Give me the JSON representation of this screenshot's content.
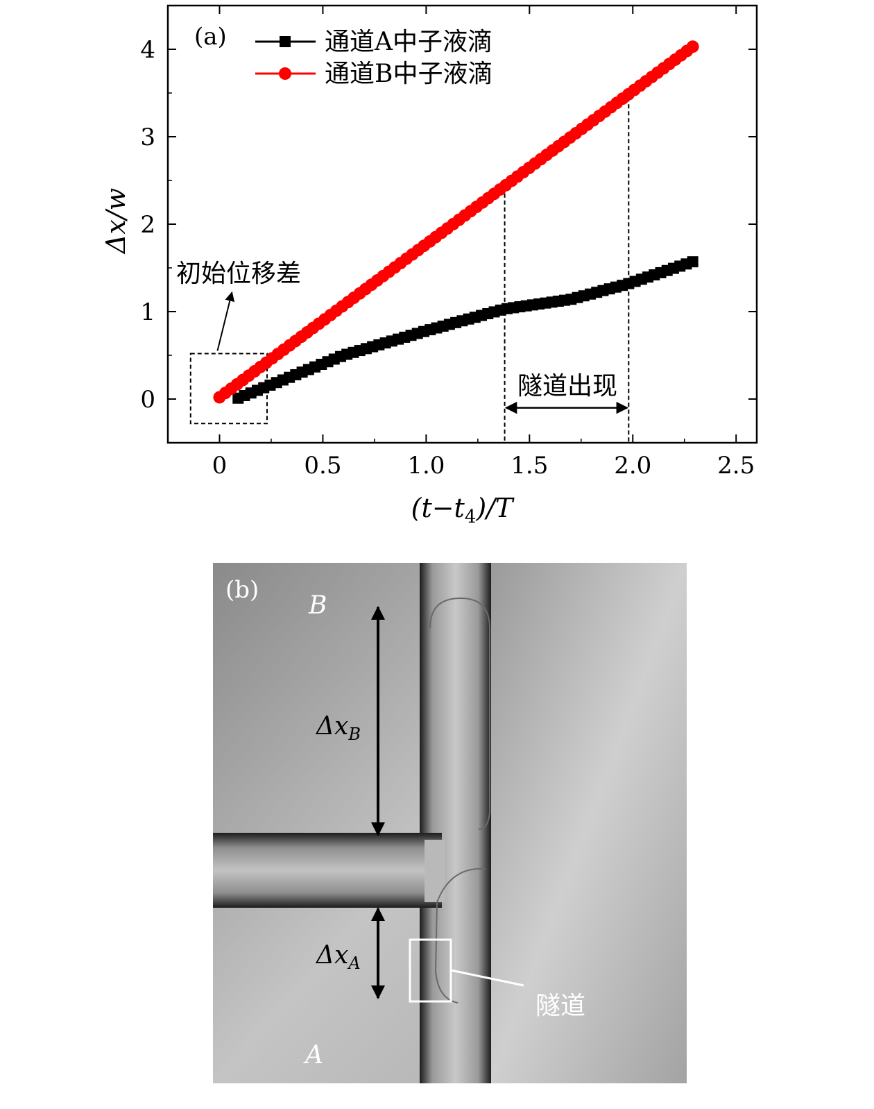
{
  "panel_a": {
    "label": "(a)",
    "ylabel": "Δx/w",
    "xlabel": "(t−t",
    "xlabel_sub": "4",
    "xlabel_tail": ")/T",
    "annotation_initial": "初始位移差",
    "annotation_tunnel": "隧道出现",
    "legend_a": "通道A中子液滴",
    "legend_b": "通道B中子液滴"
  },
  "panel_b": {
    "label": "(b)",
    "label_B": "B",
    "label_A": "A",
    "delta_b": "Δx",
    "delta_b_sub": "B",
    "delta_a": "Δx",
    "delta_a_sub": "A",
    "tunnel_label": "隧道"
  },
  "colors": {
    "series_a": "#000000",
    "series_b": "#ff0000"
  },
  "chart_data": {
    "type": "line",
    "xlabel": "(t−t4)/T",
    "ylabel": "Δx/w",
    "xlim": [
      -0.25,
      2.6
    ],
    "ylim": [
      -0.5,
      4.5
    ],
    "xticks": [
      0,
      0.5,
      1.0,
      1.5,
      2.0,
      2.5
    ],
    "xtick_labels": [
      "0",
      "0.5",
      "1.0",
      "1.5",
      "2.0",
      "2.5"
    ],
    "yticks": [
      0,
      1,
      2,
      3,
      4
    ],
    "ytick_labels": [
      "0",
      "1",
      "2",
      "3",
      "4"
    ],
    "legend_position": "top-left",
    "grid": false,
    "series": [
      {
        "name": "通道A中子液滴",
        "marker": "square",
        "color": "#000000",
        "x_start": 0.09,
        "x_end": 2.29,
        "n": 72,
        "knots": [
          [
            0.09,
            0.01
          ],
          [
            0.6,
            0.5
          ],
          [
            1.0,
            0.78
          ],
          [
            1.38,
            1.03
          ],
          [
            1.7,
            1.14
          ],
          [
            1.98,
            1.32
          ],
          [
            2.29,
            1.57
          ]
        ]
      },
      {
        "name": "通道B中子液滴",
        "marker": "circle",
        "color": "#ff0000",
        "x_start": 0.0,
        "x_end": 2.29,
        "n": 82,
        "knots": [
          [
            0.0,
            0.02
          ],
          [
            2.29,
            4.03
          ]
        ]
      }
    ],
    "annotations": [
      {
        "type": "dashed-box",
        "x": [
          -0.14,
          0.23
        ],
        "y": [
          -0.28,
          0.52
        ]
      },
      {
        "type": "dashed-vline",
        "x": 1.38,
        "y_top": 2.35
      },
      {
        "type": "dashed-vline",
        "x": 1.98,
        "y_top": 3.45
      },
      {
        "type": "double-arrow",
        "x": [
          1.38,
          1.98
        ],
        "y": -0.1
      }
    ]
  }
}
